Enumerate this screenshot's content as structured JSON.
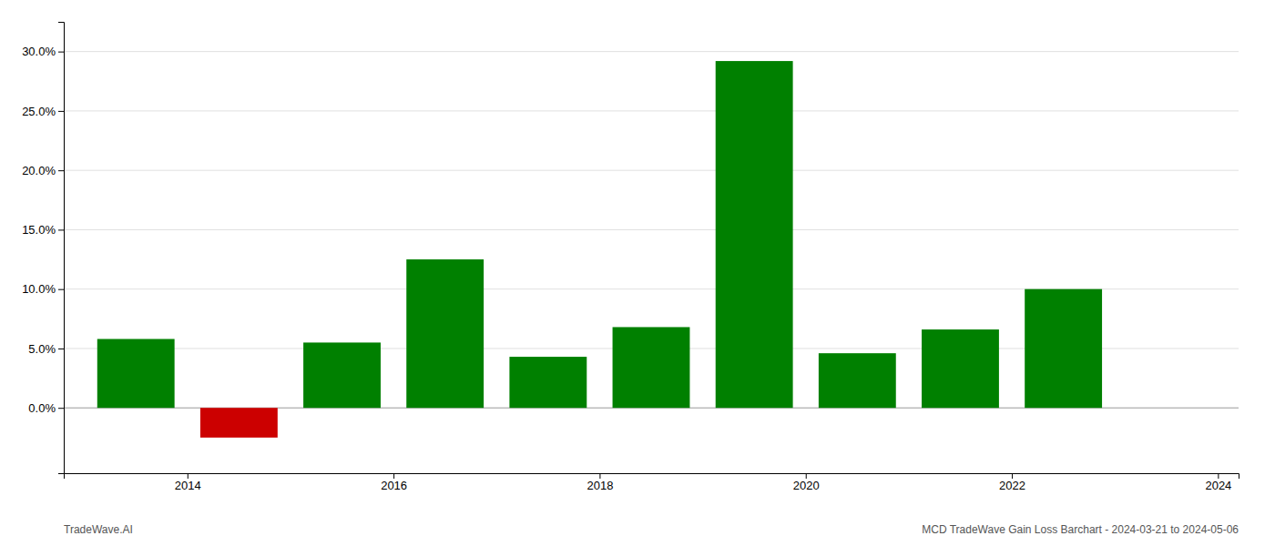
{
  "chart_data": {
    "type": "bar",
    "x": [
      2013.5,
      2014.5,
      2015.5,
      2016.5,
      2017.5,
      2018.5,
      2019.5,
      2020.5,
      2021.5,
      2022.5
    ],
    "values": [
      0.058,
      -0.025,
      0.055,
      0.125,
      0.043,
      0.068,
      0.292,
      0.046,
      0.066,
      0.1
    ],
    "colors": [
      "#008000",
      "#cc0000",
      "#008000",
      "#008000",
      "#008000",
      "#008000",
      "#008000",
      "#008000",
      "#008000",
      "#008000"
    ],
    "ylim": [
      -0.055,
      0.325
    ],
    "yticks": [
      {
        "value": 0.0,
        "label": "0.0%"
      },
      {
        "value": 0.05,
        "label": "5.0%"
      },
      {
        "value": 0.1,
        "label": "10.0%"
      },
      {
        "value": 0.15,
        "label": "15.0%"
      },
      {
        "value": 0.2,
        "label": "20.0%"
      },
      {
        "value": 0.25,
        "label": "25.0%"
      },
      {
        "value": 0.3,
        "label": "30.0%"
      }
    ],
    "xlim": [
      2012.8,
      2024.2
    ],
    "xticks": [
      2014,
      2016,
      2018,
      2020,
      2022,
      2024
    ],
    "grid": true,
    "annotations": [
      "TradeWave.AI",
      "MCD TradeWave Gain Loss Barchart - 2024-03-21 to 2024-05-06"
    ]
  }
}
